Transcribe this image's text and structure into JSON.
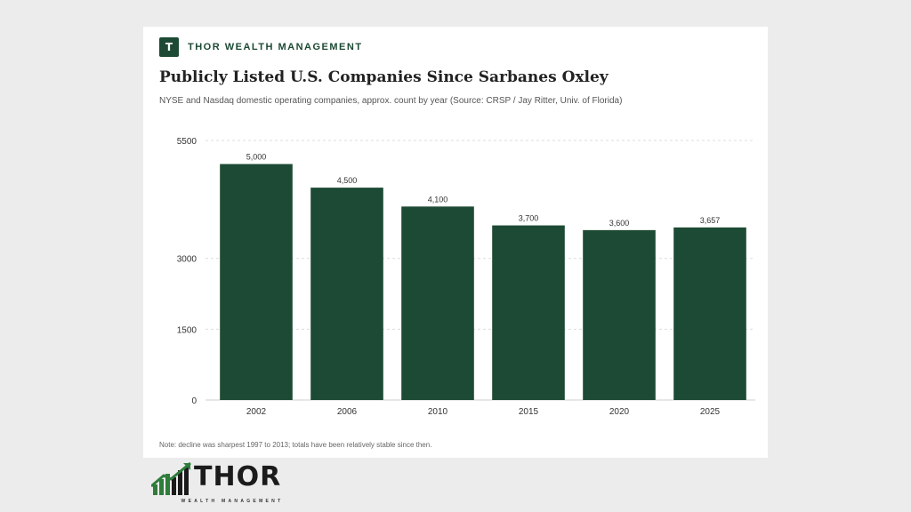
{
  "brand": {
    "badge": "T",
    "name": "THOR WEALTH MANAGEMENT"
  },
  "title": "Publicly Listed U.S. Companies Since Sarbanes Oxley",
  "subtitle": "NYSE and Nasdaq domestic operating companies, approx. count by year (Source: CRSP / Jay Ritter, Univ. of Florida)",
  "note": "Note: decline was sharpest 1997 to 2013; totals have been relatively stable since then.",
  "footer_logo": {
    "word": "THOR",
    "tagline": "WEALTH MANAGEMENT"
  },
  "colors": {
    "bar": "#1d4a34",
    "accent": "#1d4a34",
    "logo_green": "#2e7d3a"
  },
  "chart_data": {
    "type": "bar",
    "categories": [
      "2002",
      "2006",
      "2010",
      "2015",
      "2020",
      "2025"
    ],
    "values": [
      5000,
      4500,
      4100,
      3700,
      3600,
      3657
    ],
    "data_labels": [
      "5,000",
      "4,500",
      "4,100",
      "3,700",
      "3,600",
      "3,657"
    ],
    "y_ticks": [
      0,
      1500,
      3000,
      5500
    ],
    "y_tick_labels": [
      "0",
      "1500",
      "3000",
      "5500"
    ],
    "ylim": [
      0,
      5500
    ],
    "grid": true,
    "legend": "none",
    "title": "Publicly Listed U.S. Companies Since Sarbanes Oxley",
    "xlabel": "",
    "ylabel": ""
  }
}
